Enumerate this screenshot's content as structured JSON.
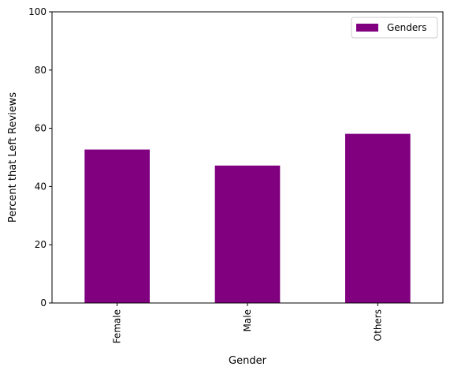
{
  "chart_data": {
    "type": "bar",
    "title": "",
    "xlabel": "Gender",
    "ylabel": "Percent that Left Reviews",
    "categories": [
      "Female",
      "Male",
      "Others"
    ],
    "series": [
      {
        "name": "Genders",
        "values": [
          52.7,
          47.2,
          58.1
        ]
      }
    ],
    "ylim": [
      0,
      100
    ],
    "yticks": [
      0,
      20,
      40,
      60,
      80,
      100
    ],
    "grid": false,
    "legend": "top-right",
    "bar_color": "#800080"
  }
}
